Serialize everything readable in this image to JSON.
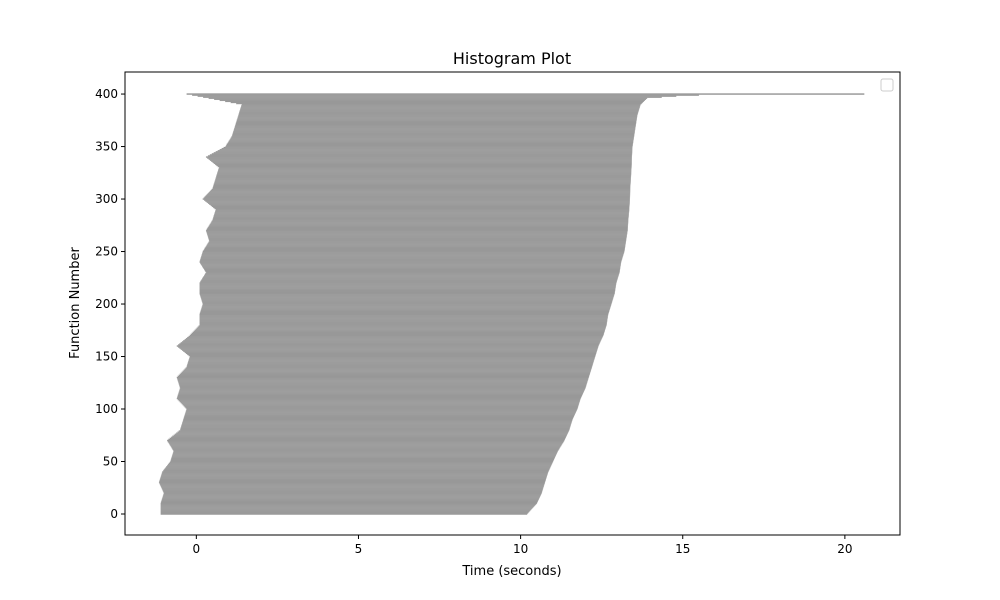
{
  "chart_data": {
    "type": "bar",
    "orientation": "horizontal",
    "title": "Histogram Plot",
    "xlabel": "Time (seconds)",
    "ylabel": "Function Number",
    "xlim": [
      -2.2,
      21.7
    ],
    "ylim": [
      -20,
      421
    ],
    "xticks": [
      0,
      5,
      10,
      15,
      20
    ],
    "yticks": [
      0,
      50,
      100,
      150,
      200,
      250,
      300,
      350,
      400
    ],
    "legend": {
      "placement": "top-right",
      "entries": []
    },
    "bar_color": "#909090",
    "bar_edge_color": "#b8b8b8",
    "bar_count": 401,
    "series": [
      {
        "start_anchor_y": [
          0,
          10,
          20,
          30,
          40,
          50,
          60,
          70,
          80,
          90,
          100,
          110,
          120,
          130,
          140,
          150,
          160,
          170,
          180,
          190,
          200,
          210,
          220,
          230,
          240,
          250,
          260,
          270,
          280,
          290,
          300,
          310,
          320,
          330,
          340,
          350,
          360,
          370,
          380,
          390,
          400
        ],
        "start_anchor_x": [
          -1.1,
          -1.1,
          -1.0,
          -1.15,
          -1.05,
          -0.8,
          -0.7,
          -0.9,
          -0.5,
          -0.4,
          -0.3,
          -0.6,
          -0.5,
          -0.6,
          -0.3,
          -0.2,
          -0.6,
          -0.2,
          0.1,
          0.1,
          0.2,
          0.1,
          0.1,
          0.3,
          0.1,
          0.2,
          0.4,
          0.3,
          0.5,
          0.6,
          0.2,
          0.5,
          0.6,
          0.7,
          0.3,
          0.9,
          1.1,
          1.2,
          1.3,
          1.4,
          -0.3
        ],
        "end_anchor_y": [
          0,
          10,
          20,
          30,
          40,
          50,
          60,
          70,
          80,
          90,
          100,
          110,
          120,
          130,
          140,
          150,
          160,
          170,
          180,
          190,
          200,
          210,
          220,
          230,
          240,
          250,
          260,
          270,
          280,
          290,
          300,
          310,
          320,
          330,
          340,
          350,
          360,
          370,
          380,
          390,
          396,
          398,
          399,
          400
        ],
        "end_anchor_x": [
          10.2,
          10.5,
          10.65,
          10.75,
          10.85,
          11.0,
          11.15,
          11.35,
          11.5,
          11.6,
          11.75,
          11.85,
          12.0,
          12.1,
          12.2,
          12.3,
          12.4,
          12.55,
          12.65,
          12.7,
          12.8,
          12.9,
          12.95,
          13.05,
          13.1,
          13.2,
          13.25,
          13.3,
          13.32,
          13.35,
          13.37,
          13.38,
          13.4,
          13.42,
          13.43,
          13.45,
          13.5,
          13.55,
          13.6,
          13.7,
          13.9,
          14.8,
          15.5,
          20.6
        ]
      }
    ]
  }
}
